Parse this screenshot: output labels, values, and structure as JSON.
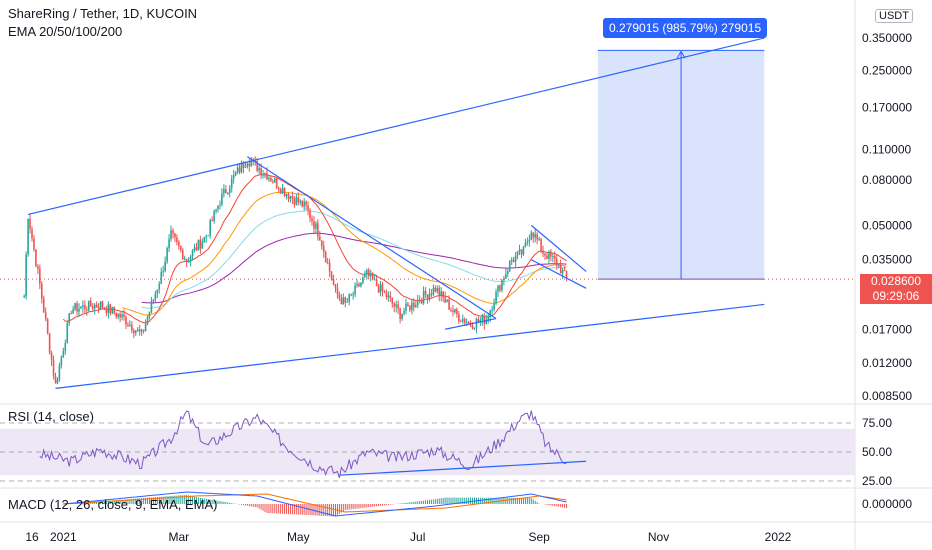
{
  "header": {
    "title": "ShareRing / Tether, 1D, KUCOIN",
    "indicator": "EMA 20/50/100/200",
    "unit": "USDT"
  },
  "rsi_legend": "RSI (14, close)",
  "macd_legend": "MACD (12, 26, close, 9, EMA, EMA)",
  "price_tag": {
    "value": "0.028600",
    "countdown": "09:29:06"
  },
  "measure_label": "0.279015 (985.79%) 279015",
  "colors": {
    "up": "#26a69a",
    "down": "#ef5350",
    "trendline": "#2962ff",
    "measure_fill": "#d4defc",
    "ema20": "#f44336",
    "ema50": "#ff9800",
    "ema100": "#80deea",
    "ema200": "#9c27b0",
    "rsi_line": "#7e57c2",
    "rsi_band": "#ede7f6",
    "macd": "#2962ff",
    "signal": "#ff6d00"
  },
  "chart_data": [
    {
      "type": "candlestick",
      "title": "ShareRing / Tether, 1D, KUCOIN",
      "scale": "log",
      "y_ticks": [
        "0.350000",
        "0.250000",
        "0.170000",
        "0.110000",
        "0.080000",
        "0.050000",
        "0.035000",
        "0.028600",
        "0.017000",
        "0.012000",
        "0.008500"
      ],
      "y_tick_values": [
        0.35,
        0.25,
        0.17,
        0.11,
        0.08,
        0.05,
        0.035,
        0.0286,
        0.017,
        0.012,
        0.0085
      ],
      "x_ticks": [
        "16",
        "2021",
        "Mar",
        "May",
        "Jul",
        "Sep",
        "Nov",
        "2022"
      ],
      "x_tick_dates": [
        "2020-12-16",
        "2021-01-01",
        "2021-03-01",
        "2021-05-01",
        "2021-07-01",
        "2021-09-01",
        "2021-11-01",
        "2022-01-01"
      ],
      "price_path": [
        {
          "date": "2020-12-12",
          "price": 0.024
        },
        {
          "date": "2020-12-14",
          "price": 0.056
        },
        {
          "date": "2020-12-20",
          "price": 0.027
        },
        {
          "date": "2020-12-28",
          "price": 0.0095
        },
        {
          "date": "2021-01-05",
          "price": 0.021
        },
        {
          "date": "2021-01-20",
          "price": 0.022
        },
        {
          "date": "2021-02-01",
          "price": 0.019
        },
        {
          "date": "2021-02-10",
          "price": 0.016
        },
        {
          "date": "2021-02-20",
          "price": 0.03
        },
        {
          "date": "2021-02-25",
          "price": 0.045
        },
        {
          "date": "2021-03-05",
          "price": 0.035
        },
        {
          "date": "2021-03-15",
          "price": 0.045
        },
        {
          "date": "2021-03-22",
          "price": 0.065
        },
        {
          "date": "2021-03-30",
          "price": 0.085
        },
        {
          "date": "2021-04-05",
          "price": 0.1
        },
        {
          "date": "2021-04-15",
          "price": 0.085
        },
        {
          "date": "2021-04-25",
          "price": 0.07
        },
        {
          "date": "2021-05-05",
          "price": 0.06
        },
        {
          "date": "2021-05-12",
          "price": 0.045
        },
        {
          "date": "2021-05-20",
          "price": 0.025
        },
        {
          "date": "2021-05-25",
          "price": 0.022
        },
        {
          "date": "2021-06-05",
          "price": 0.03
        },
        {
          "date": "2021-06-15",
          "price": 0.024
        },
        {
          "date": "2021-06-22",
          "price": 0.02
        },
        {
          "date": "2021-07-01",
          "price": 0.023
        },
        {
          "date": "2021-07-10",
          "price": 0.026
        },
        {
          "date": "2021-07-20",
          "price": 0.02
        },
        {
          "date": "2021-07-28",
          "price": 0.018
        },
        {
          "date": "2021-08-05",
          "price": 0.019
        },
        {
          "date": "2021-08-12",
          "price": 0.027
        },
        {
          "date": "2021-08-18",
          "price": 0.035
        },
        {
          "date": "2021-08-24",
          "price": 0.038
        },
        {
          "date": "2021-08-28",
          "price": 0.048
        },
        {
          "date": "2021-09-03",
          "price": 0.038
        },
        {
          "date": "2021-09-10",
          "price": 0.034
        },
        {
          "date": "2021-09-15",
          "price": 0.0286
        }
      ],
      "trendlines": [
        {
          "name": "upper-channel",
          "points": [
            {
              "date": "2020-12-14",
              "price": 0.056
            },
            {
              "date": "2021-12-25",
              "price": 0.35
            }
          ]
        },
        {
          "name": "lower-channel",
          "points": [
            {
              "date": "2020-12-28",
              "price": 0.0092
            },
            {
              "date": "2021-12-25",
              "price": 0.022
            }
          ]
        },
        {
          "name": "descending-resistance",
          "points": [
            {
              "date": "2021-04-05",
              "price": 0.102
            },
            {
              "date": "2021-08-10",
              "price": 0.019
            }
          ]
        },
        {
          "name": "support",
          "points": [
            {
              "date": "2021-07-15",
              "price": 0.017
            },
            {
              "date": "2021-08-10",
              "price": 0.019
            }
          ]
        },
        {
          "name": "flag-top",
          "points": [
            {
              "date": "2021-08-28",
              "price": 0.05
            },
            {
              "date": "2021-09-25",
              "price": 0.031
            }
          ]
        },
        {
          "name": "flag-bottom",
          "points": [
            {
              "date": "2021-08-28",
              "price": 0.035
            },
            {
              "date": "2021-09-25",
              "price": 0.026
            }
          ]
        }
      ],
      "measure": {
        "from_date": "2021-10-01",
        "to_date": "2021-12-25",
        "from_price": 0.0286,
        "to_price": 0.3077,
        "change": 0.279015,
        "percent": 985.79,
        "ticks": 279015
      }
    },
    {
      "type": "line",
      "title": "RSI (14, close)",
      "y_ticks": [
        "75.00",
        "50.00",
        "25.00"
      ],
      "bands": [
        70,
        30
      ],
      "points": [
        {
          "date": "2020-12-20",
          "value": 48
        },
        {
          "date": "2021-01-05",
          "value": 42
        },
        {
          "date": "2021-01-20",
          "value": 52
        },
        {
          "date": "2021-02-10",
          "value": 40
        },
        {
          "date": "2021-02-25",
          "value": 62
        },
        {
          "date": "2021-03-05",
          "value": 84
        },
        {
          "date": "2021-03-15",
          "value": 55
        },
        {
          "date": "2021-04-01",
          "value": 72
        },
        {
          "date": "2021-04-10",
          "value": 80
        },
        {
          "date": "2021-04-25",
          "value": 55
        },
        {
          "date": "2021-05-10",
          "value": 38
        },
        {
          "date": "2021-05-22",
          "value": 32
        },
        {
          "date": "2021-06-05",
          "value": 50
        },
        {
          "date": "2021-06-20",
          "value": 45
        },
        {
          "date": "2021-07-10",
          "value": 52
        },
        {
          "date": "2021-07-28",
          "value": 38
        },
        {
          "date": "2021-08-12",
          "value": 60
        },
        {
          "date": "2021-08-22",
          "value": 78
        },
        {
          "date": "2021-08-28",
          "value": 84
        },
        {
          "date": "2021-09-05",
          "value": 55
        },
        {
          "date": "2021-09-15",
          "value": 43
        }
      ]
    },
    {
      "type": "line",
      "title": "MACD (12, 26, close, 9, EMA, EMA)",
      "y_ticks": [
        "0.000000"
      ],
      "series": [
        {
          "name": "MACD",
          "points": [
            {
              "date": "2021-01-01",
              "value": 0.0
            },
            {
              "date": "2021-03-05",
              "value": 0.006
            },
            {
              "date": "2021-04-10",
              "value": 0.004
            },
            {
              "date": "2021-05-20",
              "value": -0.006
            },
            {
              "date": "2021-07-10",
              "value": -0.001
            },
            {
              "date": "2021-08-28",
              "value": 0.005
            },
            {
              "date": "2021-09-15",
              "value": 0.001
            }
          ]
        },
        {
          "name": "Signal",
          "points": [
            {
              "date": "2021-01-01",
              "value": 0.0
            },
            {
              "date": "2021-03-10",
              "value": 0.004
            },
            {
              "date": "2021-04-15",
              "value": 0.005
            },
            {
              "date": "2021-05-25",
              "value": -0.004
            },
            {
              "date": "2021-07-15",
              "value": -0.002
            },
            {
              "date": "2021-09-01",
              "value": 0.004
            },
            {
              "date": "2021-09-15",
              "value": 0.002
            }
          ]
        }
      ]
    }
  ]
}
